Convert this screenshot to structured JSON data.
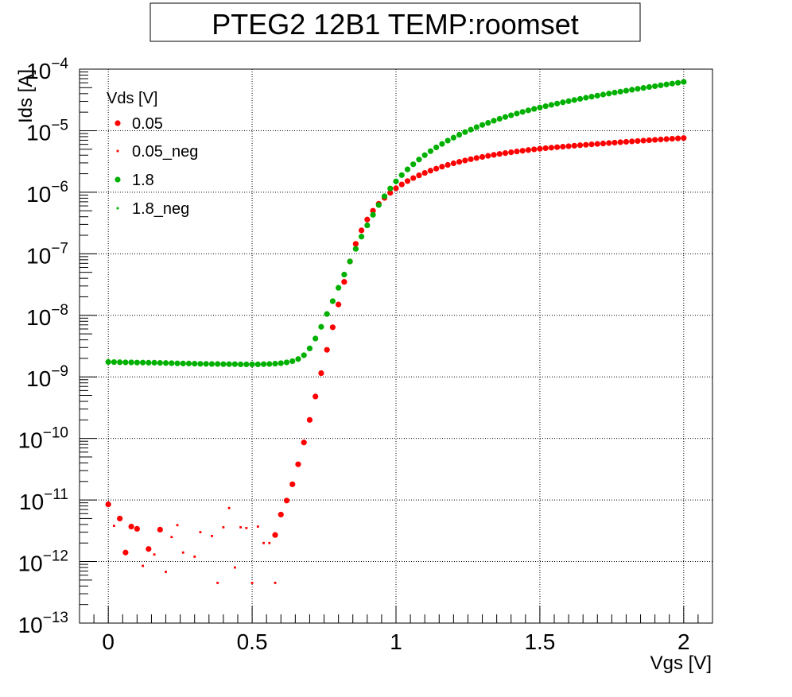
{
  "chart_data": {
    "type": "scatter",
    "title": "PTEG2 12B1 TEMP:roomset",
    "xlabel": "Vgs [V]",
    "ylabel": "Ids [A]",
    "xlim": [
      -0.1,
      2.1
    ],
    "ylim": [
      1e-13,
      0.0001
    ],
    "y_scale": "log",
    "grid": true,
    "legend_placement": "top-left",
    "legend_title": "Vds [V]",
    "x_ticks": [
      {
        "value": 0,
        "label": "0"
      },
      {
        "value": 0.5,
        "label": "0.5"
      },
      {
        "value": 1,
        "label": "1"
      },
      {
        "value": 1.5,
        "label": "1.5"
      },
      {
        "value": 2,
        "label": "2"
      }
    ],
    "y_ticks": [
      {
        "exp": -13,
        "base": "10",
        "sup": "−13"
      },
      {
        "exp": -12,
        "base": "10",
        "sup": "−12"
      },
      {
        "exp": -11,
        "base": "10",
        "sup": "−11"
      },
      {
        "exp": -10,
        "base": "10",
        "sup": "−10"
      },
      {
        "exp": -9,
        "base": "10",
        "sup": "−9"
      },
      {
        "exp": -8,
        "base": "10",
        "sup": "−8"
      },
      {
        "exp": -7,
        "base": "10",
        "sup": "−7"
      },
      {
        "exp": -6,
        "base": "10",
        "sup": "−6"
      },
      {
        "exp": -5,
        "base": "10",
        "sup": "−5"
      },
      {
        "exp": -4,
        "base": "10",
        "sup": "−4"
      }
    ],
    "series": [
      {
        "name": "0.05",
        "color": "#ff0000",
        "marker": "large-dot",
        "x": [
          0,
          0.04,
          0.06,
          0.08,
          0.1,
          0.14,
          0.18,
          0.58,
          0.6,
          0.62,
          0.64,
          0.66,
          0.68,
          0.7,
          0.72,
          0.74,
          0.76,
          0.78,
          0.8,
          0.82,
          0.84,
          0.86,
          0.88,
          0.9,
          0.92,
          0.94,
          0.96,
          0.98,
          1.0,
          1.02,
          1.04,
          1.06,
          1.08,
          1.1,
          1.12,
          1.14,
          1.16,
          1.18,
          1.2,
          1.22,
          1.24,
          1.26,
          1.28,
          1.3,
          1.32,
          1.34,
          1.36,
          1.38,
          1.4,
          1.42,
          1.44,
          1.46,
          1.48,
          1.5,
          1.52,
          1.54,
          1.56,
          1.58,
          1.6,
          1.62,
          1.64,
          1.66,
          1.68,
          1.7,
          1.72,
          1.74,
          1.76,
          1.78,
          1.8,
          1.82,
          1.84,
          1.86,
          1.88,
          1.9,
          1.92,
          1.94,
          1.96,
          1.98,
          2.0
        ],
        "y": [
          8.5e-12,
          5e-12,
          1.4e-12,
          3.7e-12,
          3.4e-12,
          1.6e-12,
          3.3e-12,
          2.7e-12,
          5.8e-12,
          9.8e-12,
          1.8e-11,
          3.8e-11,
          8.6e-11,
          2e-10,
          4.8e-10,
          1.15e-09,
          2.75e-09,
          6.4e-09,
          1.5e-08,
          3.5e-08,
          7.5e-08,
          1.45e-07,
          2.4e-07,
          3.6e-07,
          5e-07,
          6.5e-07,
          8.1e-07,
          9.8e-07,
          1.16e-06,
          1.34e-06,
          1.52e-06,
          1.7e-06,
          1.88e-06,
          2.06e-06,
          2.24e-06,
          2.42e-06,
          2.6e-06,
          2.78e-06,
          2.95e-06,
          3.12e-06,
          3.28e-06,
          3.44e-06,
          3.6e-06,
          3.75e-06,
          3.9e-06,
          4.05e-06,
          4.19e-06,
          4.33e-06,
          4.46e-06,
          4.6e-06,
          4.72e-06,
          4.85e-06,
          4.97e-06,
          5.08e-06,
          5.2e-06,
          5.3e-06,
          5.4e-06,
          5.5e-06,
          5.6e-06,
          5.7e-06,
          5.8e-06,
          5.9e-06,
          6e-06,
          6.1e-06,
          6.2e-06,
          6.3e-06,
          6.4e-06,
          6.5e-06,
          6.6e-06,
          6.7e-06,
          6.8e-06,
          6.9e-06,
          7e-06,
          7.1e-06,
          7.2e-06,
          7.3e-06,
          7.4e-06,
          7.5e-06,
          7.6e-06
        ]
      },
      {
        "name": "0.05_neg",
        "color": "#ff0000",
        "marker": "small-square",
        "x": [
          0.02,
          0.12,
          0.16,
          0.2,
          0.22,
          0.24,
          0.26,
          0.3,
          0.32,
          0.36,
          0.38,
          0.4,
          0.42,
          0.44,
          0.46,
          0.48,
          0.5,
          0.52,
          0.54,
          0.56,
          0.58
        ],
        "y": [
          3.8e-12,
          8.5e-13,
          1.3e-12,
          6.8e-13,
          2.5e-12,
          3.9e-12,
          1.4e-12,
          1.2e-12,
          3e-12,
          2.6e-12,
          4.5e-13,
          3.6e-12,
          7.4e-12,
          8e-13,
          3.6e-12,
          3.5e-12,
          4.5e-13,
          3.7e-12,
          2e-12,
          2e-12,
          4.5e-13
        ]
      },
      {
        "name": "1.8",
        "color": "#00b000",
        "marker": "large-dot",
        "x": [
          0,
          0.02,
          0.04,
          0.06,
          0.08,
          0.1,
          0.12,
          0.14,
          0.16,
          0.18,
          0.2,
          0.22,
          0.24,
          0.26,
          0.28,
          0.3,
          0.32,
          0.34,
          0.36,
          0.38,
          0.4,
          0.42,
          0.44,
          0.46,
          0.48,
          0.5,
          0.52,
          0.54,
          0.56,
          0.58,
          0.6,
          0.62,
          0.64,
          0.66,
          0.68,
          0.7,
          0.72,
          0.74,
          0.76,
          0.78,
          0.8,
          0.82,
          0.84,
          0.86,
          0.88,
          0.9,
          0.92,
          0.94,
          0.96,
          0.98,
          1.0,
          1.02,
          1.04,
          1.06,
          1.08,
          1.1,
          1.12,
          1.14,
          1.16,
          1.18,
          1.2,
          1.22,
          1.24,
          1.26,
          1.28,
          1.3,
          1.32,
          1.34,
          1.36,
          1.38,
          1.4,
          1.42,
          1.44,
          1.46,
          1.48,
          1.5,
          1.52,
          1.54,
          1.56,
          1.58,
          1.6,
          1.62,
          1.64,
          1.66,
          1.68,
          1.7,
          1.72,
          1.74,
          1.76,
          1.78,
          1.8,
          1.82,
          1.84,
          1.86,
          1.88,
          1.9,
          1.92,
          1.94,
          1.96,
          1.98,
          2.0
        ],
        "y": [
          1.75e-09,
          1.74e-09,
          1.73e-09,
          1.72e-09,
          1.72e-09,
          1.71e-09,
          1.71e-09,
          1.7e-09,
          1.7e-09,
          1.69e-09,
          1.68e-09,
          1.67e-09,
          1.66e-09,
          1.65e-09,
          1.65e-09,
          1.64e-09,
          1.63e-09,
          1.63e-09,
          1.62e-09,
          1.62e-09,
          1.61e-09,
          1.61e-09,
          1.61e-09,
          1.6e-09,
          1.6e-09,
          1.6e-09,
          1.6e-09,
          1.61e-09,
          1.62e-09,
          1.64e-09,
          1.67e-09,
          1.72e-09,
          1.8e-09,
          1.95e-09,
          2.25e-09,
          2.9e-09,
          4.2e-09,
          6.5e-09,
          1.05e-08,
          1.7e-08,
          2.8e-08,
          4.6e-08,
          7.5e-08,
          1.2e-07,
          1.9e-07,
          2.9e-07,
          4.3e-07,
          6.2e-07,
          8.6e-07,
          1.15e-06,
          1.5e-06,
          1.9e-06,
          2.35e-06,
          2.85e-06,
          3.4e-06,
          4e-06,
          4.65e-06,
          5.35e-06,
          6.1e-06,
          6.9e-06,
          7.7e-06,
          8.6e-06,
          9.5e-06,
          1.04e-05,
          1.14e-05,
          1.24e-05,
          1.34e-05,
          1.45e-05,
          1.56e-05,
          1.67e-05,
          1.78e-05,
          1.9e-05,
          2.02e-05,
          2.14e-05,
          2.26e-05,
          2.38e-05,
          2.5e-05,
          2.63e-05,
          2.76e-05,
          2.89e-05,
          3.02e-05,
          3.15e-05,
          3.29e-05,
          3.43e-05,
          3.57e-05,
          3.71e-05,
          3.86e-05,
          4.01e-05,
          4.16e-05,
          4.31e-05,
          4.47e-05,
          4.63e-05,
          4.79e-05,
          4.95e-05,
          5.12e-05,
          5.29e-05,
          5.46e-05,
          5.64e-05,
          5.82e-05,
          6e-05,
          6.2e-05
        ]
      },
      {
        "name": "1.8_neg",
        "color": "#00b000",
        "marker": "small-square",
        "x": [],
        "y": []
      }
    ]
  }
}
